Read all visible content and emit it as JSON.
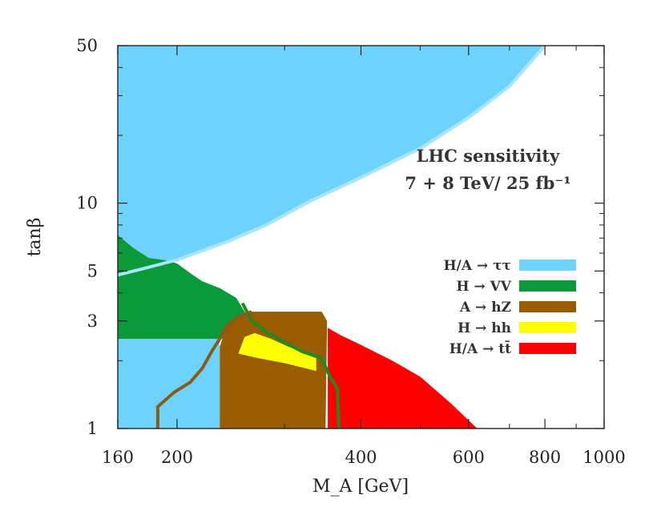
{
  "chart_data": {
    "type": "area",
    "xlabel": "M_A [GeV]",
    "ylabel": "tanβ",
    "x_scale": "log",
    "y_scale": "log",
    "xlim": [
      160,
      1000
    ],
    "ylim": [
      1,
      50
    ],
    "x_ticks": [
      {
        "value": 160,
        "label": "160"
      },
      {
        "value": 200,
        "label": "200"
      },
      {
        "value": 400,
        "label": "400"
      },
      {
        "value": 600,
        "label": "600"
      },
      {
        "value": 800,
        "label": "800"
      },
      {
        "value": 1000,
        "label": "1000"
      }
    ],
    "y_ticks": [
      {
        "value": 1,
        "label": "1"
      },
      {
        "value": 3,
        "label": "3"
      },
      {
        "value": 5,
        "label": "5"
      },
      {
        "value": 10,
        "label": "10"
      },
      {
        "value": 50,
        "label": "50"
      }
    ],
    "grid": false,
    "legend_position": "right",
    "annotation": {
      "line1": "LHC sensitivity",
      "line2": "7 + 8 TeV/ 25 fb⁻¹"
    },
    "series": [
      {
        "name": "H/A → ττ",
        "color": "#6dd3fb",
        "regions": [
          {
            "kind": "polygon",
            "points": [
              [
                160,
                4.8
              ],
              [
                175,
                5.1
              ],
              [
                200,
                5.6
              ],
              [
                240,
                6.7
              ],
              [
                280,
                8.0
              ],
              [
                330,
                10.2
              ],
              [
                400,
                13.0
              ],
              [
                500,
                17.5
              ],
              [
                600,
                24.0
              ],
              [
                700,
                33.0
              ],
              [
                800,
                50.0
              ],
              [
                160,
                50.0
              ]
            ]
          },
          {
            "kind": "polygon",
            "points": [
              [
                160,
                1.0
              ],
              [
                235,
                1.0
              ],
              [
                235,
                2.5
              ],
              [
                160,
                2.5
              ]
            ]
          }
        ],
        "boundary": {
          "points": [
            [
              160,
              4.8
            ],
            [
              175,
              5.1
            ],
            [
              200,
              5.6
            ],
            [
              240,
              6.7
            ],
            [
              280,
              8.0
            ],
            [
              330,
              10.2
            ],
            [
              400,
              13.0
            ],
            [
              500,
              17.5
            ],
            [
              600,
              24.0
            ],
            [
              700,
              33.0
            ],
            [
              800,
              50.0
            ]
          ],
          "color": "#a8e4fc"
        }
      },
      {
        "name": "H → VV",
        "color": "#0a9a3a",
        "regions": [
          {
            "kind": "polygon",
            "points": [
              [
                160,
                7.2
              ],
              [
                170,
                6.3
              ],
              [
                180,
                5.7
              ],
              [
                190,
                5.6
              ],
              [
                200,
                5.4
              ],
              [
                210,
                4.9
              ],
              [
                220,
                4.5
              ],
              [
                235,
                4.2
              ],
              [
                250,
                3.8
              ],
              [
                258,
                3.3
              ],
              [
                262,
                2.9
              ],
              [
                258,
                2.5
              ],
              [
                160,
                2.5
              ]
            ]
          }
        ],
        "boundary": {
          "points": [
            [
              256,
              3.6
            ],
            [
              265,
              3.0
            ],
            [
              285,
              2.6
            ],
            [
              320,
              2.2
            ],
            [
              345,
              2.05
            ],
            [
              356,
              1.7
            ],
            [
              366,
              1.5
            ],
            [
              368,
              1.0
            ]
          ],
          "color": "#1f8a1f"
        }
      },
      {
        "name": "A → hZ",
        "color": "#995c00",
        "regions": [
          {
            "kind": "polygon",
            "points": [
              [
                235,
                1.0
              ],
              [
                235,
                2.3
              ],
              [
                240,
                2.75
              ],
              [
                248,
                3.05
              ],
              [
                265,
                3.3
              ],
              [
                345,
                3.3
              ],
              [
                352,
                3.0
              ],
              [
                350,
                1.0
              ]
            ]
          }
        ],
        "boundary": {
          "points": [
            [
              186,
              1.0
            ],
            [
              186,
              1.25
            ],
            [
              198,
              1.45
            ],
            [
              210,
              1.6
            ],
            [
              220,
              1.85
            ],
            [
              228,
              2.2
            ],
            [
              235,
              2.5
            ],
            [
              240,
              2.8
            ],
            [
              250,
              3.1
            ],
            [
              265,
              3.3
            ]
          ],
          "color": "#8a5a1a"
        }
      },
      {
        "name": "H → hh",
        "color": "#ffff00",
        "regions": [
          {
            "kind": "polygon",
            "points": [
              [
                252,
                2.15
              ],
              [
                258,
                2.55
              ],
              [
                268,
                2.65
              ],
              [
                285,
                2.5
              ],
              [
                305,
                2.3
              ],
              [
                330,
                2.15
              ],
              [
                338,
                2.1
              ],
              [
                338,
                1.8
              ],
              [
                300,
                1.95
              ],
              [
                272,
                2.05
              ]
            ]
          }
        ]
      },
      {
        "name": "H/A → tt̄",
        "color": "#ff0000",
        "regions": [
          {
            "kind": "polygon",
            "points": [
              [
                353,
                1.0
              ],
              [
                353,
                2.8
              ],
              [
                370,
                2.6
              ],
              [
                400,
                2.35
              ],
              [
                450,
                2.0
              ],
              [
                500,
                1.7
              ],
              [
                560,
                1.3
              ],
              [
                620,
                1.0
              ]
            ]
          }
        ]
      }
    ]
  }
}
